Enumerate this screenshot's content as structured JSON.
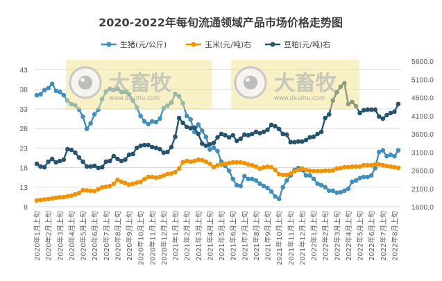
{
  "chart_data": {
    "type": "line",
    "title": "2020-2022年每旬流通领域产品市场价格走势图",
    "xlabel": "",
    "ylabel": "",
    "y_left": {
      "ticks": [
        "43",
        "38",
        "33",
        "28",
        "23",
        "18",
        "13",
        "8"
      ],
      "range": [
        8,
        45.2
      ]
    },
    "y_right": {
      "ticks": [
        "5600.0",
        "5100.0",
        "4600.0",
        "4100.0",
        "3600.0",
        "3100.0",
        "2600.0",
        "2100.0",
        "1600.0"
      ],
      "range": [
        1600,
        5600
      ]
    },
    "grid": true,
    "legend": "top",
    "categories": [
      "2020年1月上旬",
      "2020年1月中旬",
      "2020年1月下旬",
      "2020年2月上旬",
      "2020年2月中旬",
      "2020年2月下旬",
      "2020年3月上旬",
      "2020年3月中旬",
      "2020年3月下旬",
      "2020年4月上旬",
      "2020年4月中旬",
      "2020年4月下旬",
      "2020年5月上旬",
      "2020年5月中旬",
      "2020年5月下旬",
      "2020年6月上旬",
      "2020年6月中旬",
      "2020年6月下旬",
      "2020年7月上旬",
      "2020年7月中旬",
      "2020年7月下旬",
      "2020年8月上旬",
      "2020年8月中旬",
      "2020年8月下旬",
      "2020年9月上旬",
      "2020年9月中旬",
      "2020年9月下旬",
      "2020年10月上旬",
      "2020年10月中旬",
      "2020年10月下旬",
      "2020年11月上旬",
      "2020年11月中旬",
      "2020年11月下旬",
      "2020年12月上旬",
      "2020年12月中旬",
      "2020年12月下旬",
      "2021年1月上旬",
      "2021年1月中旬",
      "2021年1月下旬",
      "2021年2月上旬",
      "2021年2月中旬",
      "2021年2月下旬",
      "2021年3月上旬",
      "2021年3月中旬",
      "2021年3月下旬",
      "2021年4月上旬",
      "2021年4月中旬",
      "2021年4月下旬",
      "2021年5月上旬",
      "2021年5月中旬",
      "2021年5月下旬",
      "2021年6月上旬",
      "2021年6月中旬",
      "2021年6月下旬",
      "2021年7月上旬",
      "2021年7月中旬",
      "2021年7月下旬",
      "2021年8月上旬",
      "2021年8月中旬",
      "2021年8月下旬",
      "2021年9月上旬",
      "2021年9月中旬",
      "2021年9月下旬",
      "2021年10月上旬",
      "2021年10月中旬",
      "2021年10月下旬",
      "2021年11月上旬",
      "2021年11月中旬",
      "2021年11月下旬",
      "2021年12月上旬",
      "2021年12月中旬",
      "2021年12月下旬",
      "2022年1月上旬",
      "2022年1月中旬",
      "2022年1月下旬",
      "2022年2月上旬",
      "2022年2月中旬",
      "2022年2月下旬",
      "2022年3月上旬",
      "2022年3月中旬",
      "2022年3月下旬",
      "2022年4月上旬",
      "2022年4月中旬",
      "2022年4月下旬",
      "2022年5月上旬",
      "2022年5月中旬",
      "2022年5月下旬",
      "2022年6月上旬",
      "2022年6月中旬",
      "2022年6月下旬",
      "2022年7月上旬",
      "2022年7月中旬",
      "2022年7月下旬",
      "2022年8月上旬",
      "2022年8月中旬"
    ],
    "xtick_labels": [
      "2020年1月上旬",
      "2020年2月上旬",
      "2020年3月上旬",
      "2020年4月上旬",
      "2020年5月上旬",
      "2020年6月上旬",
      "2020年7月上旬",
      "2020年8月上旬",
      "2020年9月上旬",
      "2020年10月上旬",
      "2020年11月上旬",
      "2020年12月上旬",
      "2021年1月上旬",
      "2021年2月上旬",
      "2021年3月上旬",
      "2021年4月上旬",
      "2021年5月上旬",
      "2021年6月上旬",
      "2021年7月上旬",
      "2021年8月上旬",
      "2021年9月上旬",
      "2021年10月上旬",
      "2021年11月上旬",
      "2021年12月上旬",
      "2022年1月上旬",
      "2022年2月上旬",
      "2022年3月上旬",
      "2022年4月上旬",
      "2022年5月上旬",
      "2022年6月上旬",
      "2022年7月上旬",
      "2022年8月上旬"
    ],
    "series": [
      {
        "name": "生猪(元/公斤)",
        "axis": "left",
        "color": "#3f8fbe",
        "values": [
          36.5,
          36.7,
          37.8,
          38.3,
          39.4,
          37.6,
          37.3,
          36.5,
          35.1,
          34.2,
          33.9,
          32.8,
          31.0,
          27.9,
          29.3,
          31.6,
          32.8,
          35.5,
          37.4,
          38.1,
          37.8,
          38.1,
          37.3,
          37.3,
          36.7,
          35.1,
          33.4,
          31.2,
          29.8,
          29.1,
          29.8,
          29.6,
          30.5,
          33.2,
          33.8,
          34.6,
          36.8,
          36.2,
          34.4,
          31.2,
          30.3,
          27.1,
          29.0,
          27.4,
          25.8,
          22.6,
          23.1,
          22.2,
          19.5,
          18.5,
          17.2,
          15.1,
          13.5,
          13.3,
          15.8,
          15.1,
          15.1,
          14.7,
          13.9,
          13.3,
          12.8,
          11.9,
          10.6,
          10.0,
          13.0,
          14.7,
          16.0,
          17.4,
          17.9,
          17.4,
          16.0,
          16.0,
          15.1,
          13.9,
          13.5,
          13.0,
          12.1,
          12.1,
          11.6,
          11.7,
          12.1,
          12.6,
          14.4,
          14.7,
          15.3,
          15.6,
          15.6,
          16.0,
          17.9,
          22.0,
          22.4,
          20.9,
          21.3,
          20.9,
          22.4
        ]
      },
      {
        "name": "玉米(元/吨)右",
        "axis": "right",
        "color": "#f39200",
        "values": [
          1771,
          1790,
          1800,
          1810,
          1830,
          1848,
          1860,
          1867,
          1885,
          1905,
          1940,
          1981,
          2057,
          2050,
          2038,
          2030,
          2080,
          2133,
          2150,
          2171,
          2229,
          2343,
          2290,
          2248,
          2210,
          2230,
          2260,
          2290,
          2362,
          2419,
          2419,
          2400,
          2420,
          2457,
          2500,
          2514,
          2552,
          2648,
          2820,
          2857,
          2840,
          2857,
          2895,
          2880,
          2838,
          2781,
          2686,
          2740,
          2762,
          2781,
          2800,
          2819,
          2819,
          2819,
          2800,
          2762,
          2740,
          2705,
          2648,
          2680,
          2700,
          2686,
          2610,
          2495,
          2476,
          2476,
          2510,
          2571,
          2610,
          2648,
          2610,
          2591,
          2580,
          2580,
          2580,
          2591,
          2591,
          2600,
          2648,
          2660,
          2686,
          2686,
          2700,
          2705,
          2705,
          2743,
          2743,
          2743,
          2762,
          2762,
          2743,
          2720,
          2705,
          2686,
          2667
        ]
      },
      {
        "name": "豆粕(元/吨)右",
        "axis": "right",
        "color": "#24546e",
        "values": [
          2781,
          2705,
          2686,
          2838,
          2914,
          2819,
          2857,
          2895,
          3181,
          3162,
          3086,
          2952,
          2838,
          2705,
          2705,
          2724,
          2667,
          2686,
          2838,
          2857,
          2991,
          2914,
          2857,
          2895,
          3029,
          3048,
          3219,
          3276,
          3295,
          3295,
          3238,
          3219,
          3181,
          3086,
          3105,
          3238,
          3524,
          4038,
          3905,
          3791,
          3753,
          3772,
          3600,
          3334,
          3276,
          3314,
          3353,
          3505,
          3600,
          3562,
          3505,
          3562,
          3410,
          3467,
          3581,
          3562,
          3600,
          3657,
          3619,
          3657,
          3714,
          3848,
          3810,
          3734,
          3600,
          3581,
          3372,
          3372,
          3391,
          3391,
          3429,
          3505,
          3524,
          3600,
          3657,
          4038,
          4134,
          4515,
          4743,
          4896,
          4991,
          4420,
          4477,
          4362,
          4172,
          4248,
          4267,
          4267,
          4267,
          4077,
          4019,
          4115,
          4172,
          4210,
          4420
        ]
      }
    ]
  },
  "watermark": {
    "brand": "大畜牧",
    "url": "www.dxumu.com"
  }
}
